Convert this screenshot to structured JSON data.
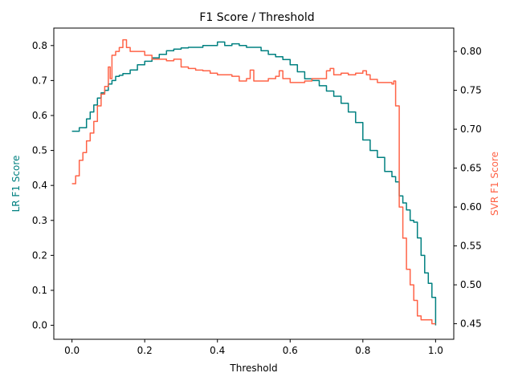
{
  "chart_data": {
    "type": "line",
    "title": "F1 Score / Threshold",
    "xlabel": "Threshold",
    "ylabel_left": "LR F1 Score",
    "ylabel_right": "SVR F1 Score",
    "xlim": [
      -0.05,
      1.05
    ],
    "ylim_left": [
      -0.04,
      0.85
    ],
    "ylim_right": [
      0.43,
      0.83
    ],
    "x_ticks": [
      "0.0",
      "0.2",
      "0.4",
      "0.6",
      "0.8",
      "1.0"
    ],
    "y_left_ticks": [
      "0.0",
      "0.1",
      "0.2",
      "0.3",
      "0.4",
      "0.5",
      "0.6",
      "0.7",
      "0.8"
    ],
    "y_right_ticks": [
      "0.45",
      "0.50",
      "0.55",
      "0.60",
      "0.65",
      "0.70",
      "0.75",
      "0.80"
    ],
    "grid": false,
    "colors": {
      "lr": "#008080",
      "svr": "#ff6347",
      "axes": "#000000"
    },
    "series": [
      {
        "axis": "left",
        "x": [
          0.0,
          0.02,
          0.04,
          0.05,
          0.06,
          0.07,
          0.08,
          0.09,
          0.1,
          0.11,
          0.12,
          0.13,
          0.14,
          0.16,
          0.18,
          0.2,
          0.22,
          0.24,
          0.26,
          0.28,
          0.3,
          0.32,
          0.34,
          0.36,
          0.38,
          0.4,
          0.42,
          0.44,
          0.46,
          0.48,
          0.5,
          0.52,
          0.54,
          0.56,
          0.58,
          0.6,
          0.62,
          0.64,
          0.66,
          0.68,
          0.7,
          0.72,
          0.74,
          0.76,
          0.78,
          0.8,
          0.82,
          0.84,
          0.86,
          0.88,
          0.89,
          0.9,
          0.91,
          0.92,
          0.93,
          0.94,
          0.95,
          0.96,
          0.97,
          0.98,
          0.99,
          1.0
        ],
        "y": [
          0.555,
          0.565,
          0.59,
          0.61,
          0.63,
          0.65,
          0.665,
          0.672,
          0.69,
          0.7,
          0.712,
          0.715,
          0.72,
          0.73,
          0.745,
          0.755,
          0.765,
          0.775,
          0.785,
          0.79,
          0.793,
          0.795,
          0.795,
          0.8,
          0.8,
          0.81,
          0.8,
          0.805,
          0.8,
          0.795,
          0.795,
          0.785,
          0.775,
          0.768,
          0.76,
          0.745,
          0.725,
          0.705,
          0.7,
          0.685,
          0.67,
          0.655,
          0.635,
          0.61,
          0.58,
          0.53,
          0.5,
          0.48,
          0.44,
          0.425,
          0.41,
          0.37,
          0.35,
          0.33,
          0.3,
          0.295,
          0.25,
          0.2,
          0.15,
          0.12,
          0.08,
          0.0
        ]
      },
      {
        "axis": "right",
        "x": [
          0.0,
          0.01,
          0.02,
          0.03,
          0.04,
          0.05,
          0.06,
          0.07,
          0.08,
          0.09,
          0.1,
          0.105,
          0.11,
          0.12,
          0.13,
          0.14,
          0.15,
          0.16,
          0.18,
          0.2,
          0.22,
          0.24,
          0.26,
          0.28,
          0.3,
          0.32,
          0.34,
          0.36,
          0.38,
          0.4,
          0.42,
          0.44,
          0.46,
          0.48,
          0.49,
          0.5,
          0.52,
          0.54,
          0.56,
          0.57,
          0.58,
          0.6,
          0.62,
          0.64,
          0.66,
          0.68,
          0.7,
          0.71,
          0.72,
          0.74,
          0.76,
          0.78,
          0.8,
          0.81,
          0.82,
          0.84,
          0.86,
          0.88,
          0.885,
          0.89,
          0.9,
          0.91,
          0.92,
          0.93,
          0.94,
          0.95,
          0.96,
          0.98,
          0.99,
          1.0
        ],
        "y": [
          0.63,
          0.64,
          0.66,
          0.67,
          0.685,
          0.695,
          0.71,
          0.73,
          0.745,
          0.755,
          0.78,
          0.765,
          0.795,
          0.8,
          0.805,
          0.815,
          0.805,
          0.8,
          0.8,
          0.795,
          0.79,
          0.79,
          0.788,
          0.79,
          0.78,
          0.778,
          0.776,
          0.775,
          0.772,
          0.77,
          0.77,
          0.768,
          0.762,
          0.765,
          0.776,
          0.762,
          0.762,
          0.765,
          0.768,
          0.775,
          0.765,
          0.76,
          0.76,
          0.762,
          0.765,
          0.765,
          0.775,
          0.778,
          0.77,
          0.772,
          0.77,
          0.772,
          0.775,
          0.77,
          0.764,
          0.76,
          0.76,
          0.758,
          0.762,
          0.73,
          0.6,
          0.56,
          0.52,
          0.5,
          0.48,
          0.46,
          0.455,
          0.455,
          0.45,
          0.45
        ]
      }
    ]
  }
}
